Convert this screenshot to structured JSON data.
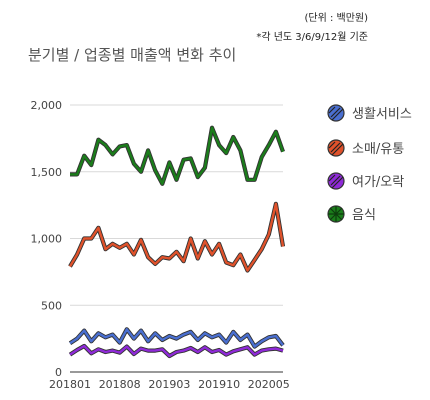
{
  "chart_data": {
    "type": "line",
    "title": "분기별 / 업종별 매출액 변화 추이",
    "unit_note": "(단위 : 백만원)",
    "season_note": "*각 년도 3/6/9/12월 기준",
    "ylim": [
      0,
      2000
    ],
    "yticks": [
      0,
      500,
      1000,
      1500,
      2000
    ],
    "ytick_labels": [
      "0",
      "500",
      "1,000",
      "1,500",
      "2,000"
    ],
    "xtick_labels": [
      "201801",
      "201808",
      "201903",
      "201910",
      "202005"
    ],
    "xtick_index": [
      0,
      7,
      14,
      21,
      28
    ],
    "grid": true,
    "legend_position": "right",
    "x": [
      "201801",
      "201802",
      "201803",
      "201804",
      "201805",
      "201806",
      "201807",
      "201808",
      "201809",
      "201810",
      "201811",
      "201812",
      "201901",
      "201902",
      "201903",
      "201904",
      "201905",
      "201906",
      "201907",
      "201908",
      "201909",
      "201910",
      "201911",
      "201912",
      "202001",
      "202002",
      "202003",
      "202004",
      "202005",
      "202006",
      "202007"
    ],
    "series": [
      {
        "name": "생활서비스",
        "color": "#4a6fd0",
        "marker": "hatch",
        "values": [
          215,
          250,
          310,
          230,
          290,
          260,
          280,
          220,
          320,
          250,
          310,
          230,
          290,
          240,
          270,
          250,
          280,
          300,
          240,
          290,
          260,
          280,
          220,
          300,
          240,
          280,
          190,
          230,
          260,
          270,
          200
        ]
      },
      {
        "name": "소매/유통",
        "color": "#e0522b",
        "marker": "hatch",
        "values": [
          790,
          880,
          1000,
          1000,
          1080,
          920,
          960,
          930,
          960,
          880,
          990,
          860,
          810,
          860,
          850,
          900,
          830,
          1000,
          850,
          980,
          880,
          960,
          820,
          800,
          880,
          760,
          840,
          920,
          1030,
          1260,
          940
        ]
      },
      {
        "name": "여가/오락",
        "color": "#8f2ad8",
        "marker": "hatch",
        "values": [
          130,
          165,
          195,
          140,
          170,
          150,
          160,
          145,
          190,
          135,
          175,
          160,
          160,
          170,
          120,
          150,
          160,
          180,
          150,
          185,
          150,
          165,
          130,
          155,
          170,
          185,
          130,
          160,
          170,
          175,
          160
        ]
      },
      {
        "name": "음식",
        "color": "#1b7d1b",
        "marker": "cross",
        "values": [
          1480,
          1480,
          1620,
          1550,
          1740,
          1700,
          1630,
          1690,
          1700,
          1560,
          1500,
          1660,
          1510,
          1410,
          1570,
          1440,
          1590,
          1600,
          1460,
          1530,
          1830,
          1700,
          1640,
          1760,
          1660,
          1440,
          1440,
          1610,
          1700,
          1800,
          1650
        ]
      }
    ]
  }
}
